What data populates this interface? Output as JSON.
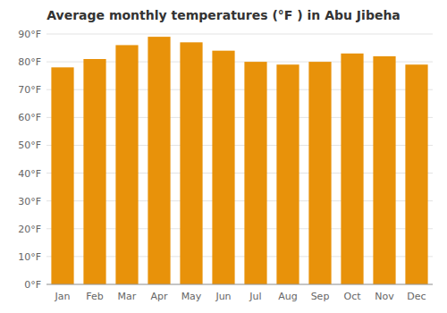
{
  "chart_data": {
    "type": "bar",
    "title": "Average monthly temperatures (°F ) in Abu Jibeha",
    "categories": [
      "Jan",
      "Feb",
      "Mar",
      "Apr",
      "May",
      "Jun",
      "Jul",
      "Aug",
      "Sep",
      "Oct",
      "Nov",
      "Dec"
    ],
    "values": [
      78,
      81,
      86,
      89,
      87,
      84,
      80,
      79,
      80,
      83,
      82,
      79
    ],
    "color": "#E8920A",
    "ylim": [
      0,
      90
    ],
    "yticks": [
      {
        "value": 0,
        "label": "0°F"
      },
      {
        "value": 10,
        "label": "10°F"
      },
      {
        "value": 20,
        "label": "20°F"
      },
      {
        "value": 30,
        "label": "30°F"
      },
      {
        "value": 40,
        "label": "40°F"
      },
      {
        "value": 50,
        "label": "50°F"
      },
      {
        "value": 60,
        "label": "60°F"
      },
      {
        "value": 70,
        "label": "70°F"
      },
      {
        "value": 80,
        "label": "80°F"
      },
      {
        "value": 90,
        "label": "90°F"
      }
    ],
    "grid": true
  }
}
